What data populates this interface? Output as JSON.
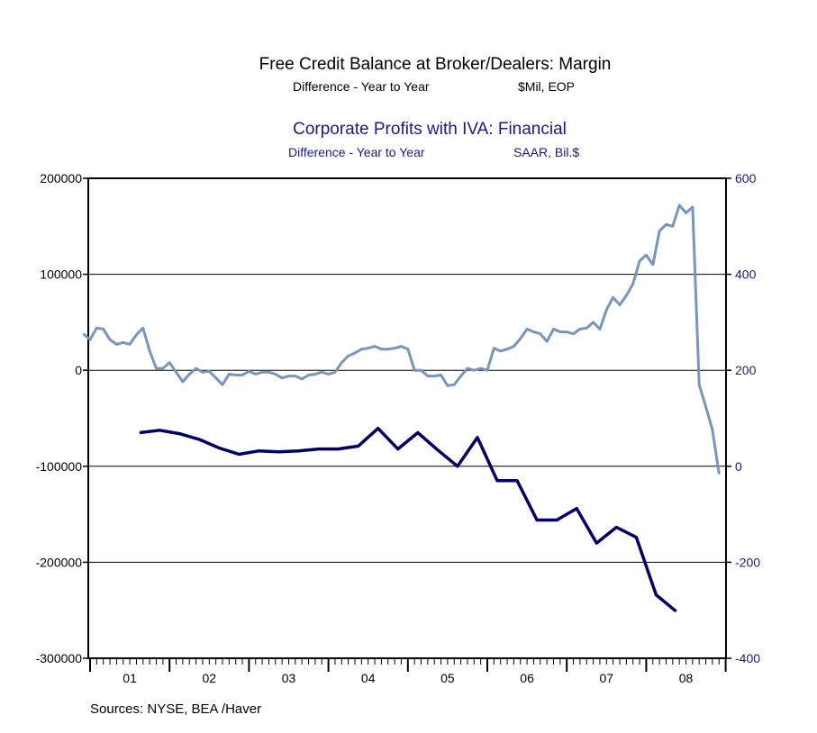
{
  "titles": {
    "series1_title": "Free Credit Balance at Broker/Dealers: Margin",
    "series1_subtitle_left": "Difference - Year to Year",
    "series1_subtitle_right": "$Mil, EOP",
    "series2_title": "Corporate Profits with IVA: Financial",
    "series2_subtitle_left": "Difference - Year to Year",
    "series2_subtitle_right": "SAAR, Bil.$"
  },
  "footer": {
    "sources": "Sources:  NYSE, BEA /Haver"
  },
  "colors": {
    "series1": "#7895bb",
    "series2": "#000066",
    "right_axis_text": "#1a1a80"
  },
  "chart_data": {
    "type": "line",
    "x_tick_labels": [
      "01",
      "02",
      "03",
      "04",
      "05",
      "06",
      "07",
      "08"
    ],
    "left_axis": {
      "ylim": [
        -300000,
        200000
      ],
      "ticks": [
        200000,
        100000,
        0,
        -100000,
        -200000,
        -300000
      ],
      "tick_labels": [
        "200000",
        "100000",
        "0",
        "-100000",
        "-200000",
        "-300000"
      ]
    },
    "right_axis": {
      "ylim": [
        -400,
        600
      ],
      "ticks": [
        600,
        400,
        200,
        0,
        -200,
        -400
      ],
      "tick_labels": [
        "600",
        "400",
        "200",
        "0",
        "-200",
        "-400"
      ]
    },
    "grid": "horizontal",
    "series": [
      {
        "axis": "left",
        "frequency": "monthly",
        "start": "2000-12",
        "values": [
          38000,
          32000,
          44000,
          43000,
          32000,
          27000,
          29000,
          27000,
          37000,
          44000,
          20000,
          2000,
          2000,
          8000,
          -2000,
          -12000,
          -4000,
          2000,
          -2000,
          -1000,
          -8000,
          -15000,
          -4000,
          -5000,
          -5000,
          -1000,
          -4000,
          -2000,
          -2000,
          -4000,
          -8000,
          -6000,
          -6000,
          -9000,
          -5000,
          -4000,
          -2000,
          -4000,
          -2000,
          8000,
          15000,
          18000,
          22000,
          23000,
          25000,
          22000,
          22000,
          23000,
          25000,
          22000,
          0,
          0,
          -6000,
          -6000,
          -5000,
          -16000,
          -15000,
          -6000,
          2000,
          0,
          2000,
          0,
          23000,
          20000,
          22000,
          25000,
          33000,
          43000,
          40000,
          38000,
          30000,
          43000,
          40000,
          40000,
          38000,
          43000,
          44000,
          50000,
          43000,
          63000,
          76000,
          68000,
          78000,
          90000,
          114000,
          120000,
          110000,
          145000,
          152000,
          150000,
          172000,
          164000,
          170000,
          -15000,
          -38000,
          -62000,
          -108000
        ]
      },
      {
        "axis": "right",
        "frequency": "quarterly",
        "start": "2001Q3",
        "values": [
          70,
          75,
          68,
          56,
          38,
          25,
          32,
          30,
          32,
          36,
          36,
          42,
          79,
          36,
          70,
          34,
          0,
          60,
          -30,
          -30,
          -112,
          -112,
          -88,
          -160,
          -127,
          -148,
          -268,
          -302
        ]
      }
    ]
  }
}
